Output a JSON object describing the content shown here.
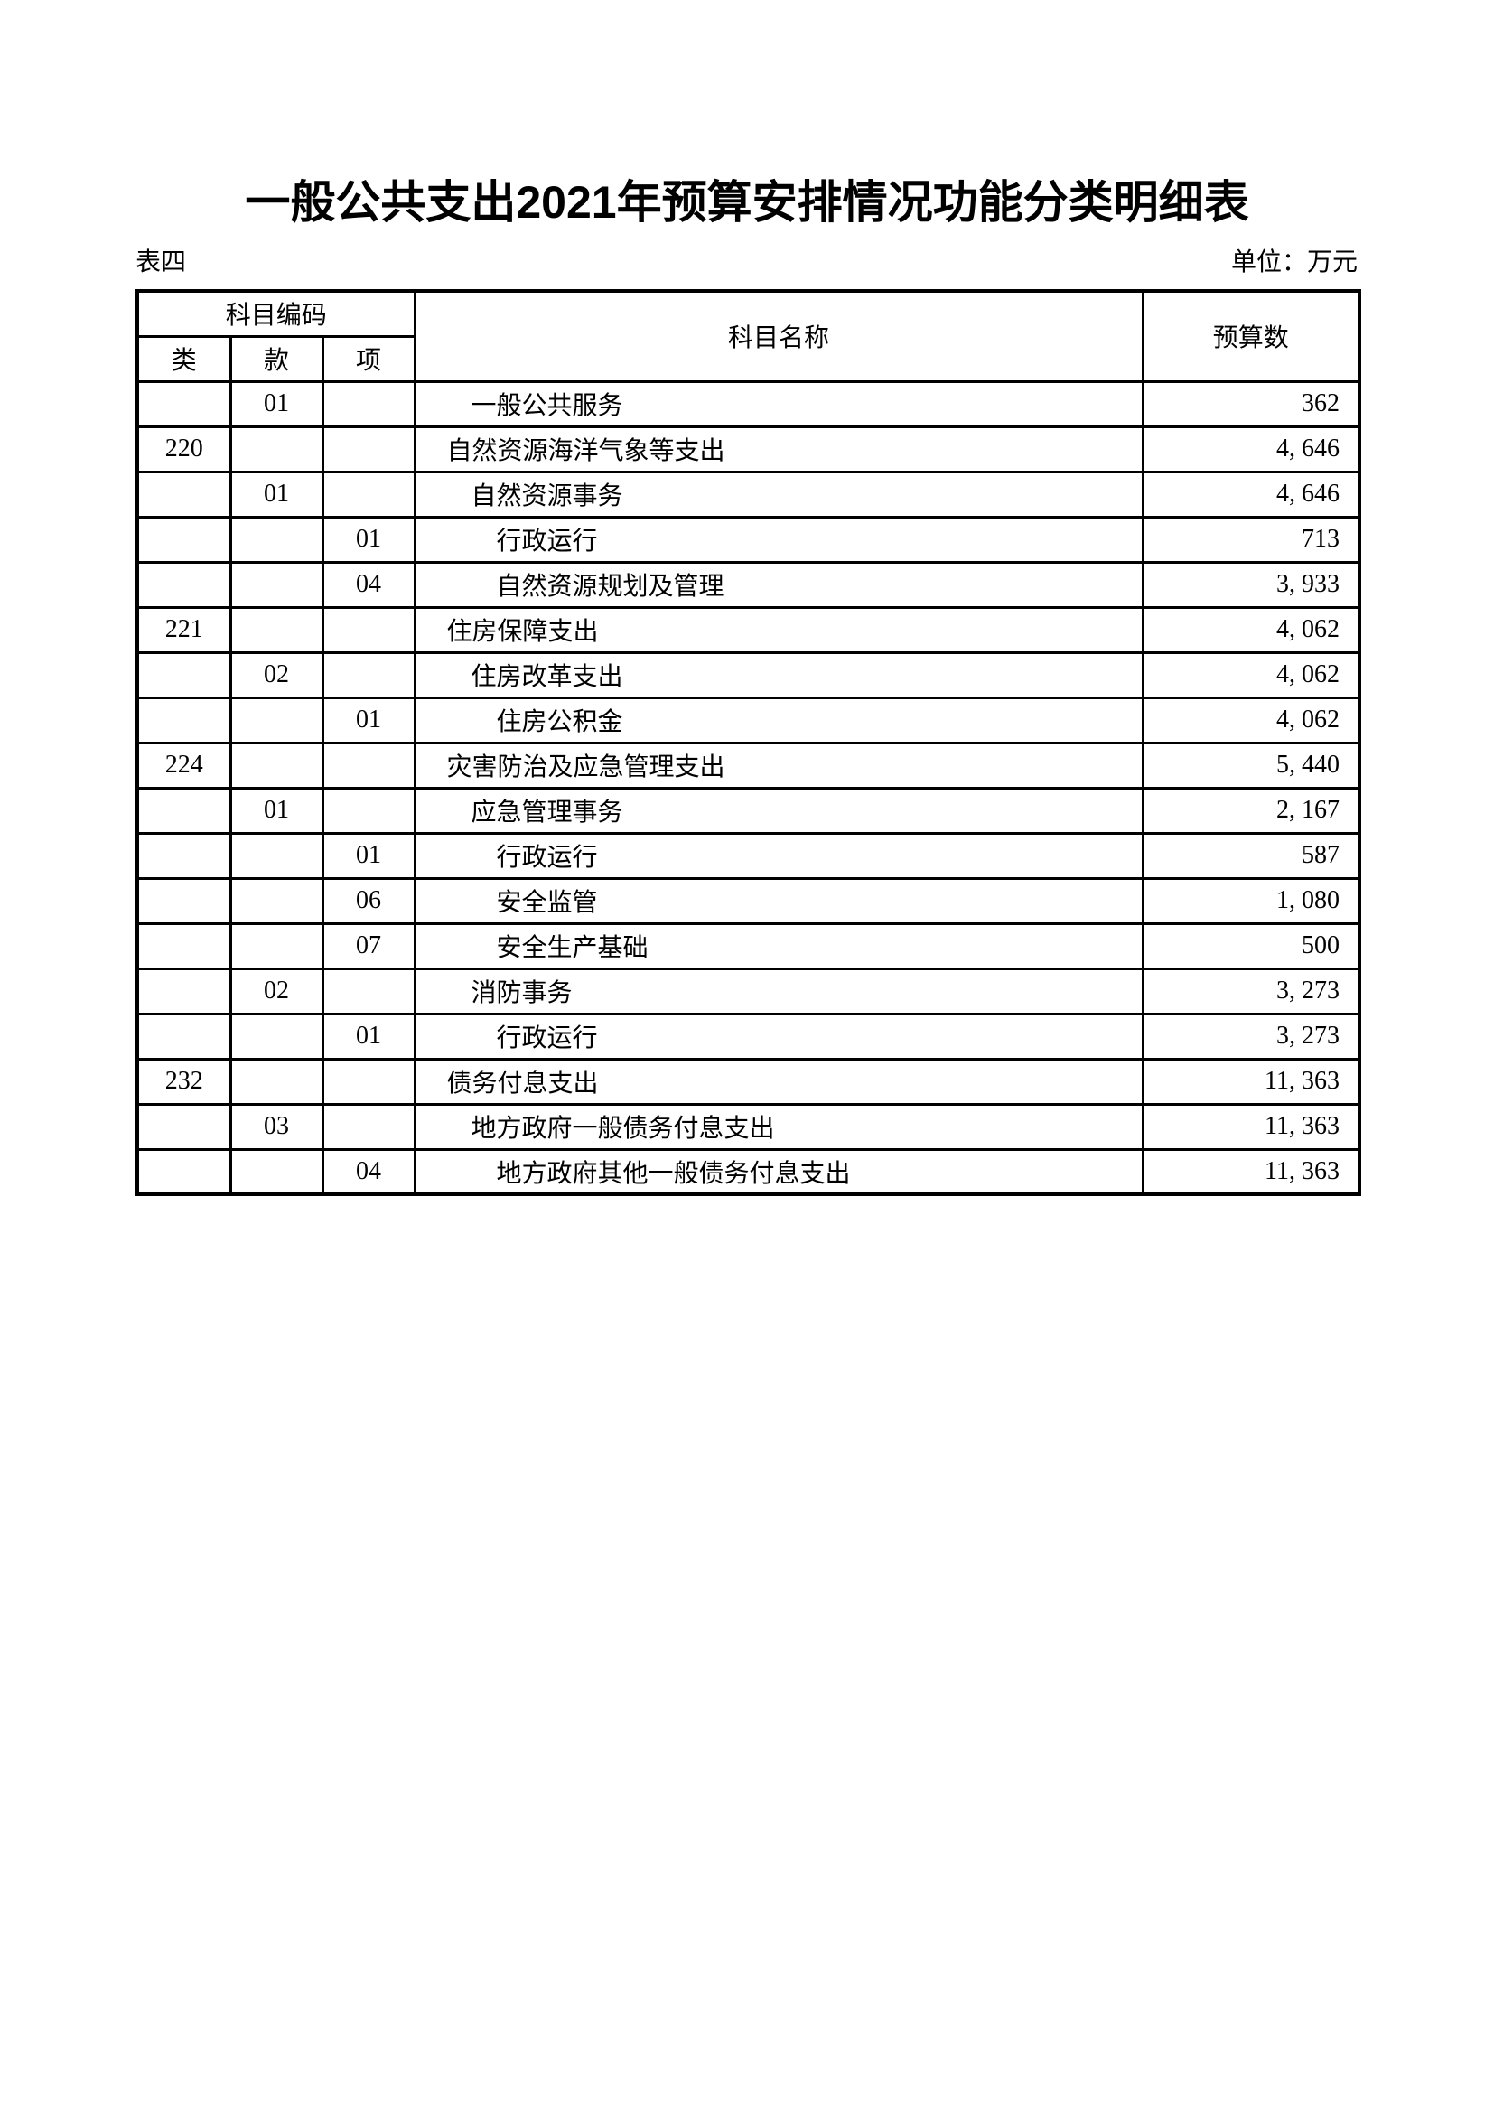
{
  "page": {
    "title": "一般公共支出2021年预算安排情况功能分类明细表",
    "table_label": "表四",
    "unit_label": "单位：万元"
  },
  "table": {
    "header": {
      "code_group": "科目编码",
      "code_cols": [
        "类",
        "款",
        "项"
      ],
      "name_col": "科目名称",
      "budget_col": "预算数"
    },
    "rows": [
      {
        "cls": "",
        "sec": "01",
        "item": "",
        "level": 2,
        "name": "一般公共服务",
        "budget": "362"
      },
      {
        "cls": "220",
        "sec": "",
        "item": "",
        "level": 1,
        "name": "自然资源海洋气象等支出",
        "budget": "4, 646"
      },
      {
        "cls": "",
        "sec": "01",
        "item": "",
        "level": 2,
        "name": "自然资源事务",
        "budget": "4, 646"
      },
      {
        "cls": "",
        "sec": "",
        "item": "01",
        "level": 3,
        "name": "行政运行",
        "budget": "713"
      },
      {
        "cls": "",
        "sec": "",
        "item": "04",
        "level": 3,
        "name": "自然资源规划及管理",
        "budget": "3, 933"
      },
      {
        "cls": "221",
        "sec": "",
        "item": "",
        "level": 1,
        "name": "住房保障支出",
        "budget": "4, 062"
      },
      {
        "cls": "",
        "sec": "02",
        "item": "",
        "level": 2,
        "name": "住房改革支出",
        "budget": "4, 062"
      },
      {
        "cls": "",
        "sec": "",
        "item": "01",
        "level": 3,
        "name": "住房公积金",
        "budget": "4, 062"
      },
      {
        "cls": "224",
        "sec": "",
        "item": "",
        "level": 1,
        "name": "灾害防治及应急管理支出",
        "budget": "5, 440"
      },
      {
        "cls": "",
        "sec": "01",
        "item": "",
        "level": 2,
        "name": "应急管理事务",
        "budget": "2, 167"
      },
      {
        "cls": "",
        "sec": "",
        "item": "01",
        "level": 3,
        "name": "行政运行",
        "budget": "587"
      },
      {
        "cls": "",
        "sec": "",
        "item": "06",
        "level": 3,
        "name": "安全监管",
        "budget": "1, 080"
      },
      {
        "cls": "",
        "sec": "",
        "item": "07",
        "level": 3,
        "name": "安全生产基础",
        "budget": "500"
      },
      {
        "cls": "",
        "sec": "02",
        "item": "",
        "level": 2,
        "name": "消防事务",
        "budget": "3, 273"
      },
      {
        "cls": "",
        "sec": "",
        "item": "01",
        "level": 3,
        "name": "行政运行",
        "budget": "3, 273"
      },
      {
        "cls": "232",
        "sec": "",
        "item": "",
        "level": 1,
        "name": "债务付息支出",
        "budget": "11, 363"
      },
      {
        "cls": "",
        "sec": "03",
        "item": "",
        "level": 2,
        "name": "地方政府一般债务付息支出",
        "budget": "11, 363"
      },
      {
        "cls": "",
        "sec": "",
        "item": "04",
        "level": 3,
        "name": "地方政府其他一般债务付息支出",
        "budget": "11, 363"
      }
    ]
  },
  "colors": {
    "text": "#000000",
    "border": "#000000",
    "background": "#ffffff"
  }
}
